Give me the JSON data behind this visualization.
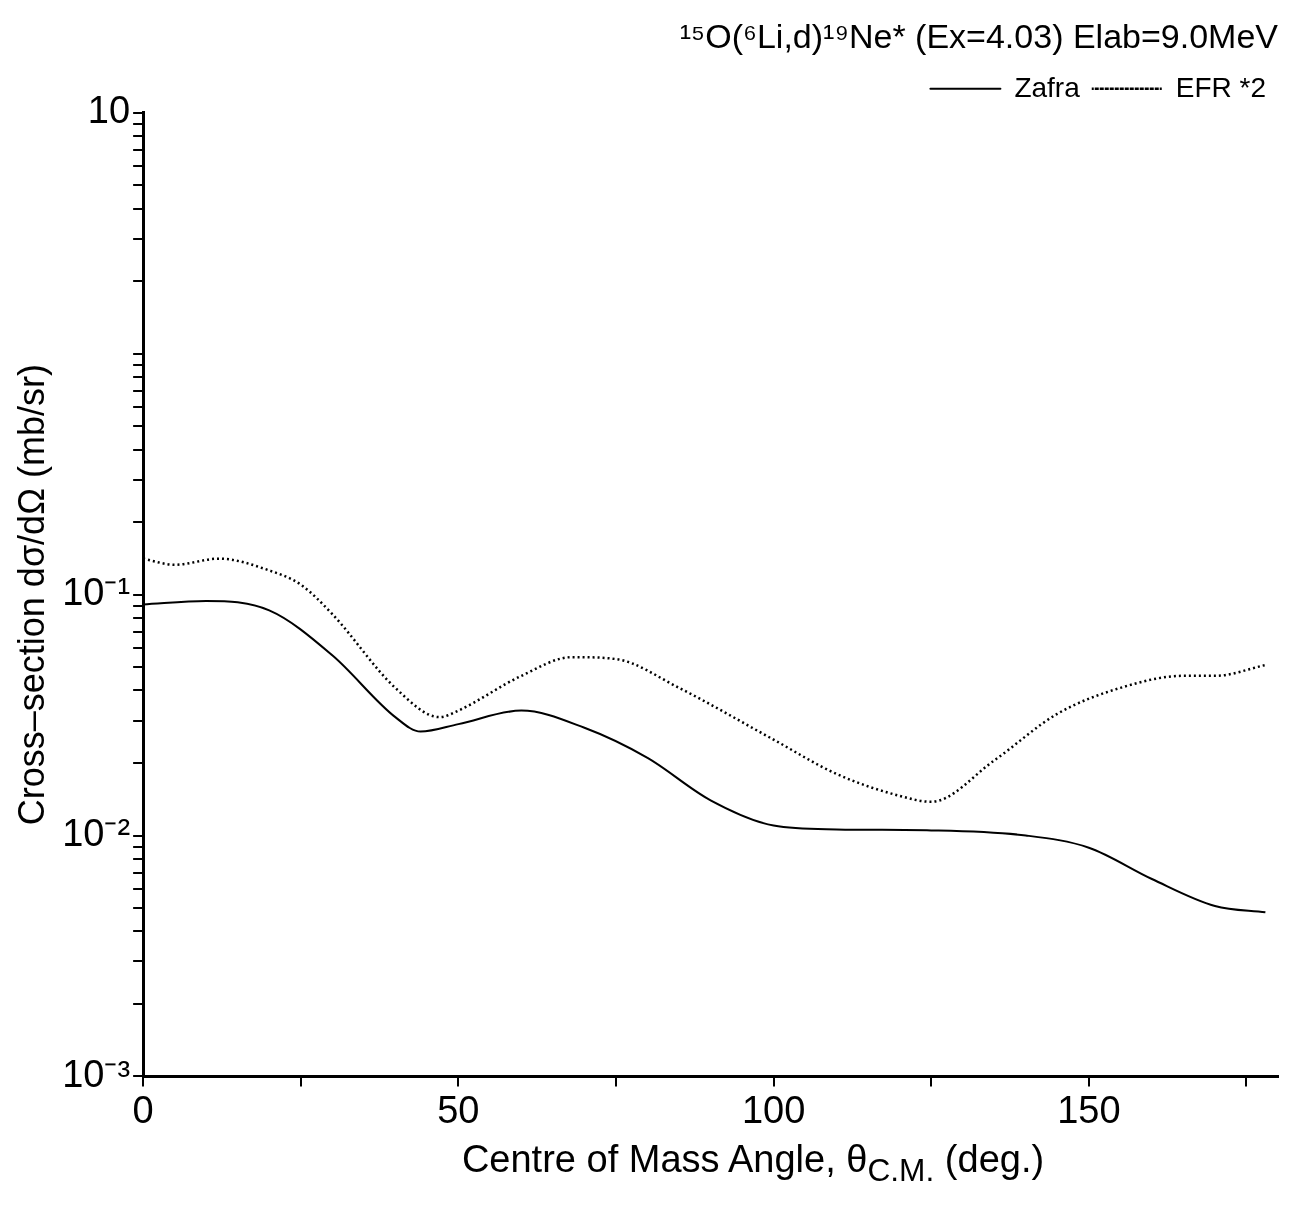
{
  "chart_data": {
    "type": "line",
    "title": "¹⁵O(⁶Li,d)¹⁹Ne* (Ex=4.03) Elab=9.0MeV",
    "xlabel": "Centre of Mass Angle, θ$_{C.M.}$ (deg.)",
    "ylabel": "Cross–section dσ/dΩ (mb/sr)",
    "log": "y",
    "grid": false,
    "legend": "top right",
    "marker": "none",
    "xlim": [
      0,
      180
    ],
    "xticks": [
      0,
      {
        "value": 25,
        "label": null
      },
      50,
      {
        "value": 75,
        "label": null
      },
      100,
      {
        "value": 125,
        "label": null
      },
      150,
      {
        "value": 175,
        "label": null
      }
    ],
    "ylim": [
      0.001,
      10
    ],
    "yticks": [
      {
        "value": 0.001,
        "label": "10⁻³"
      },
      {
        "value": 0.002,
        "label": null
      },
      {
        "value": 0.003,
        "label": null
      },
      {
        "value": 0.004,
        "label": null
      },
      {
        "value": 0.005,
        "label": null
      },
      {
        "value": 0.006,
        "label": null
      },
      {
        "value": 0.007,
        "label": null
      },
      {
        "value": 0.008,
        "label": null
      },
      {
        "value": 0.009,
        "label": null
      },
      {
        "value": 0.01,
        "label": "10⁻²"
      },
      {
        "value": 0.02,
        "label": null
      },
      {
        "value": 0.03,
        "label": null
      },
      {
        "value": 0.04,
        "label": null
      },
      {
        "value": 0.05,
        "label": null
      },
      {
        "value": 0.06,
        "label": null
      },
      {
        "value": 0.07,
        "label": null
      },
      {
        "value": 0.08,
        "label": null
      },
      {
        "value": 0.09,
        "label": null
      },
      {
        "value": 0.1,
        "label": "10⁻¹"
      },
      {
        "value": 0.2,
        "label": null
      },
      {
        "value": 0.3,
        "label": null
      },
      {
        "value": 0.4,
        "label": null
      },
      {
        "value": 0.5,
        "label": null
      },
      {
        "value": 0.6,
        "label": null
      },
      {
        "value": 0.7,
        "label": null
      },
      {
        "value": 0.8,
        "label": null
      },
      {
        "value": 0.9,
        "label": null
      },
      {
        "value": 1,
        "label": null
      },
      {
        "value": 2,
        "label": null
      },
      {
        "value": 3,
        "label": null
      },
      {
        "value": 4,
        "label": null
      },
      {
        "value": 5,
        "label": null
      },
      {
        "value": 6,
        "label": null
      },
      {
        "value": 7,
        "label": null
      },
      {
        "value": 8,
        "label": null
      },
      {
        "value": 9,
        "label": null
      },
      {
        "value": 10,
        "label": "10"
      }
    ],
    "series": [
      {
        "name": "Zafra",
        "color": "#000000",
        "line_style": "solid",
        "x": [
          0,
          10,
          20,
          30,
          40,
          44,
          50,
          60,
          70,
          80,
          90,
          100,
          110,
          125,
          140,
          150,
          160,
          170,
          178
        ],
        "values": [
          0.091,
          0.094,
          0.086,
          0.056,
          0.031,
          0.027,
          0.029,
          0.033,
          0.028,
          0.021,
          0.014,
          0.011,
          0.0106,
          0.0105,
          0.01,
          0.0089,
          0.0066,
          0.0051,
          0.0048
        ]
      },
      {
        "name": "EFR *2",
        "color": "#000000",
        "line_style": "dotted",
        "x": [
          0,
          5,
          12,
          20,
          25,
          30,
          40,
          47,
          50,
          60,
          68,
          75,
          85,
          100,
          110,
          120,
          125,
          135,
          145,
          155,
          165,
          170,
          178
        ],
        "values": [
          0.141,
          0.133,
          0.141,
          0.126,
          0.11,
          0.083,
          0.041,
          0.031,
          0.033,
          0.046,
          0.055,
          0.054,
          0.041,
          0.025,
          0.018,
          0.0146,
          0.0138,
          0.0205,
          0.032,
          0.041,
          0.046,
          0.046,
          0.051
        ]
      }
    ]
  }
}
